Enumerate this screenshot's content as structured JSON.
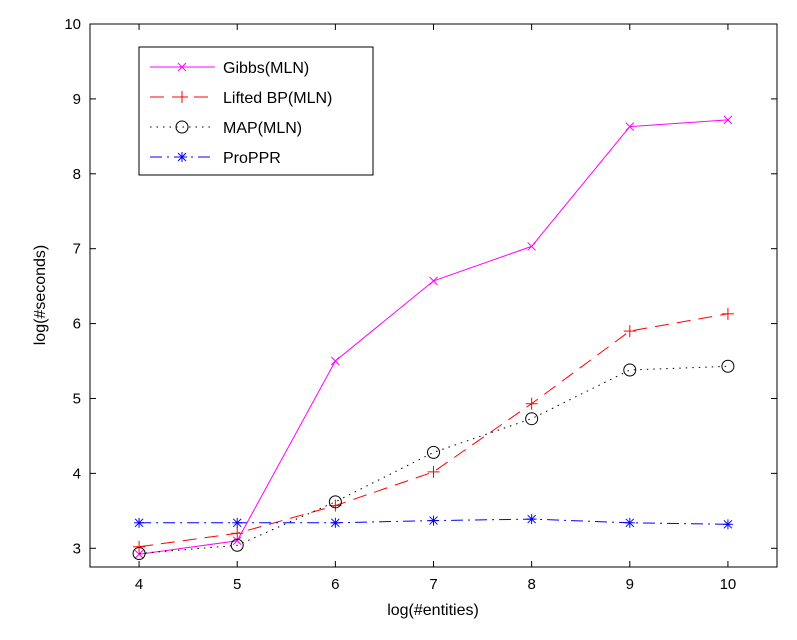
{
  "chart_data": {
    "type": "line",
    "title": "",
    "xlabel": "log(#entities)",
    "ylabel": "log(#seconds)",
    "xlim": [
      3.5,
      10.5
    ],
    "ylim": [
      2.75,
      10
    ],
    "xticks": [
      4,
      5,
      6,
      7,
      8,
      9,
      10
    ],
    "yticks": [
      3,
      4,
      5,
      6,
      7,
      8,
      9,
      10
    ],
    "grid": false,
    "legend_position": "top-left",
    "x": [
      4,
      5,
      6,
      7,
      8,
      9,
      10
    ],
    "series": [
      {
        "name": "Gibbs(MLN)",
        "color": "#ff00ff",
        "dash": "solid",
        "marker": "x",
        "values": [
          2.92,
          3.1,
          5.5,
          6.57,
          7.03,
          8.63,
          8.72
        ]
      },
      {
        "name": "Lifted BP(MLN)",
        "color": "#ff0000",
        "dash": "dashed",
        "marker": "plus",
        "values": [
          3.02,
          3.2,
          3.57,
          4.02,
          4.93,
          5.9,
          6.13
        ]
      },
      {
        "name": "MAP(MLN)",
        "color": "#000000",
        "dash": "dotted",
        "marker": "circle",
        "values": [
          2.93,
          3.04,
          3.62,
          4.28,
          4.73,
          5.38,
          5.43
        ]
      },
      {
        "name": "ProPPR",
        "color": "#0000ff",
        "dash": "dashdot",
        "marker": "star",
        "values": [
          3.34,
          3.34,
          3.34,
          3.37,
          3.39,
          3.34,
          3.32
        ]
      }
    ]
  }
}
